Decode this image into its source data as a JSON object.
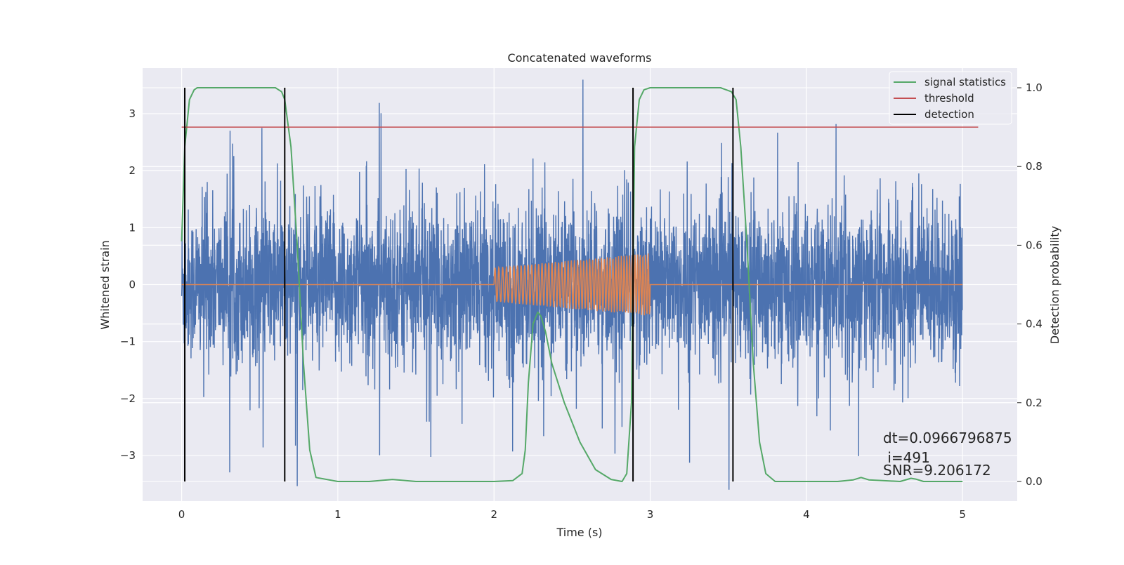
{
  "chart_data": {
    "type": "line",
    "title": "Concatenated waveforms",
    "xlabel": "Time (s)",
    "ylabel_left": "Whitened strain",
    "ylabel_right": "Detection probability",
    "xlim": [
      -0.25,
      5.35
    ],
    "ylim_left": [
      -3.8,
      3.8
    ],
    "ylim_right": [
      -0.05,
      1.05
    ],
    "x_ticks": [
      0,
      1,
      2,
      3,
      4,
      5
    ],
    "x_tick_labels": [
      "0",
      "1",
      "2",
      "3",
      "4",
      "5"
    ],
    "y_left_ticks": [
      -3,
      -2,
      -1,
      0,
      1,
      2,
      3
    ],
    "y_left_tick_labels": [
      "−3",
      "−2",
      "−1",
      "0",
      "1",
      "2",
      "3"
    ],
    "y_right_ticks": [
      0.0,
      0.2,
      0.4,
      0.6,
      0.8,
      1.0
    ],
    "y_right_tick_labels": [
      "0.0",
      "0.2",
      "0.4",
      "0.6",
      "0.8",
      "1.0"
    ],
    "grid": true,
    "legend_position": "top-right",
    "colors": {
      "background": "#eaeaf2",
      "grid": "#ffffff",
      "noise": "#4c72b0",
      "injection": "#dd8452",
      "signal_statistics": "#55a868",
      "threshold": "#c44e52",
      "detection": "#000000"
    },
    "series": [
      {
        "name": "signal statistics",
        "axis": "right",
        "x": [
          0.0,
          0.02,
          0.05,
          0.08,
          0.1,
          0.2,
          0.4,
          0.6,
          0.64,
          0.66,
          0.7,
          0.74,
          0.78,
          0.82,
          0.86,
          1.0,
          1.2,
          1.35,
          1.5,
          1.8,
          2.0,
          2.12,
          2.18,
          2.2,
          2.22,
          2.25,
          2.28,
          2.3,
          2.33,
          2.37,
          2.45,
          2.55,
          2.65,
          2.75,
          2.82,
          2.85,
          2.88,
          2.9,
          2.93,
          2.96,
          3.0,
          3.2,
          3.45,
          3.52,
          3.55,
          3.58,
          3.62,
          3.66,
          3.7,
          3.74,
          3.8,
          3.9,
          4.2,
          4.3,
          4.35,
          4.4,
          4.6,
          4.67,
          4.7,
          4.75,
          5.0
        ],
        "y": [
          0.61,
          0.85,
          0.97,
          0.995,
          1.0,
          1.0,
          1.0,
          1.0,
          0.99,
          0.97,
          0.85,
          0.6,
          0.3,
          0.08,
          0.01,
          0.0,
          0.0,
          0.005,
          0.0,
          0.0,
          0.0,
          0.002,
          0.02,
          0.08,
          0.25,
          0.4,
          0.43,
          0.42,
          0.38,
          0.3,
          0.2,
          0.1,
          0.03,
          0.005,
          0.0,
          0.02,
          0.2,
          0.85,
          0.97,
          0.995,
          1.0,
          1.0,
          1.0,
          0.99,
          0.97,
          0.85,
          0.6,
          0.3,
          0.1,
          0.02,
          0.0,
          0.0,
          0.0,
          0.004,
          0.01,
          0.004,
          0.0,
          0.008,
          0.006,
          0.0,
          0.0
        ]
      },
      {
        "name": "threshold",
        "axis": "right",
        "x": [
          0.0,
          5.1
        ],
        "y": [
          0.9,
          0.9
        ]
      },
      {
        "name": "detection",
        "axis": "right",
        "type": "vlines",
        "x": [
          0.02,
          0.66,
          2.89,
          3.53
        ],
        "ymin": 0.0,
        "ymax": 1.0
      },
      {
        "axis": "left",
        "type": "noise",
        "x_range": [
          0,
          5
        ],
        "typical_amplitude": 0.65,
        "envelope_max": 3.6,
        "points": 4000
      },
      {
        "axis": "left",
        "type": "chirp",
        "x": [
          0,
          2,
          2.0,
          3.0,
          3.0,
          5
        ],
        "envelope": [
          0,
          0,
          0.3,
          0.55,
          0,
          0
        ],
        "cycles_between_2_and_3": 50
      }
    ],
    "annotations": [
      "dt=0.0966796875",
      " i=491",
      "SNR=9.206172"
    ]
  }
}
